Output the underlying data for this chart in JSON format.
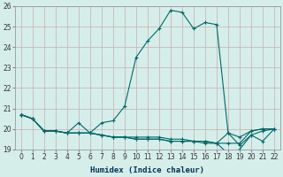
{
  "xlabel": "Humidex (Indice chaleur)",
  "bg_color": "#d6eeea",
  "plot_bg_color": "#d6eeea",
  "line_color": "#006868",
  "grid_color": "#c8b8b8",
  "xlim": [
    -0.5,
    22.5
  ],
  "ylim": [
    19,
    26
  ],
  "yticks": [
    19,
    20,
    21,
    22,
    23,
    24,
    25,
    26
  ],
  "xticks": [
    0,
    1,
    2,
    3,
    4,
    5,
    6,
    7,
    8,
    9,
    10,
    11,
    12,
    13,
    14,
    15,
    16,
    17,
    18,
    19,
    20,
    21,
    22
  ],
  "series": [
    [
      20.7,
      20.5,
      19.9,
      19.9,
      19.8,
      20.3,
      19.8,
      20.3,
      20.4,
      21.1,
      23.5,
      24.3,
      24.9,
      25.8,
      25.7,
      24.9,
      25.2,
      25.1,
      19.8,
      19.2,
      19.7,
      19.9,
      20.0
    ],
    [
      20.7,
      20.5,
      19.9,
      19.9,
      19.8,
      19.8,
      19.8,
      19.7,
      19.6,
      19.6,
      19.6,
      19.6,
      19.6,
      19.5,
      19.5,
      19.4,
      19.4,
      19.3,
      19.3,
      19.3,
      19.9,
      20.0,
      20.0
    ],
    [
      20.7,
      20.5,
      19.9,
      19.9,
      19.8,
      19.8,
      19.8,
      19.7,
      19.6,
      19.6,
      19.5,
      19.5,
      19.5,
      19.4,
      19.4,
      19.4,
      19.3,
      19.3,
      18.8,
      19.0,
      19.7,
      19.4,
      20.0
    ],
    [
      20.7,
      20.5,
      19.9,
      19.9,
      19.8,
      19.8,
      19.8,
      19.7,
      19.6,
      19.6,
      19.5,
      19.5,
      19.5,
      19.4,
      19.4,
      19.4,
      19.4,
      19.3,
      19.8,
      19.6,
      19.9,
      20.0,
      20.0
    ]
  ]
}
